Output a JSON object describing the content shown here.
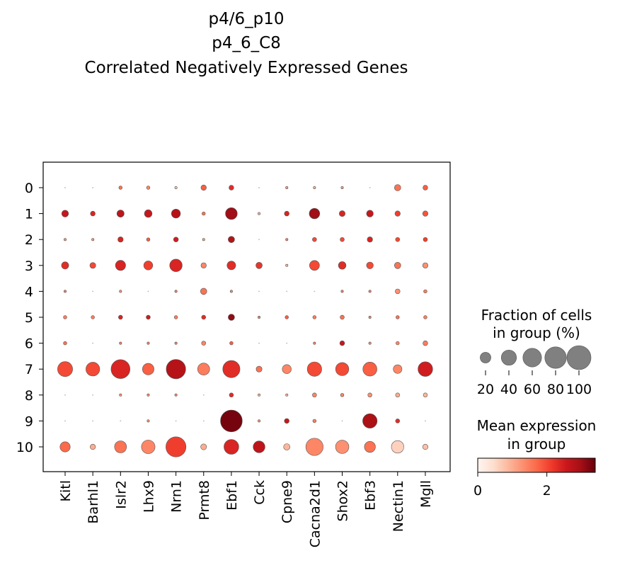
{
  "chart_data": {
    "type": "dotplot",
    "title": [
      "p4/6_p10",
      "p4_6_C8",
      "Correlated Negatively Expressed Genes"
    ],
    "genes": [
      "Kitl",
      "Barhl1",
      "Islr2",
      "Lhx9",
      "Nrn1",
      "Prmt8",
      "Ebf1",
      "Cck",
      "Cpne9",
      "Cacna2d1",
      "Shox2",
      "Ebf3",
      "Nectin1",
      "Mgll"
    ],
    "groups": [
      "0",
      "1",
      "2",
      "3",
      "4",
      "5",
      "6",
      "7",
      "8",
      "9",
      "10"
    ],
    "fraction_pct": [
      [
        0,
        0,
        2,
        2,
        1,
        5,
        4,
        0,
        1,
        1,
        1,
        0,
        7,
        4
      ],
      [
        8,
        4,
        9,
        10,
        14,
        2,
        24,
        1,
        4,
        19,
        6,
        8,
        5,
        5
      ],
      [
        1,
        1,
        5,
        2,
        4,
        1,
        7,
        0,
        1,
        3,
        3,
        5,
        3,
        3
      ],
      [
        9,
        6,
        18,
        14,
        27,
        5,
        13,
        7,
        1,
        17,
        10,
        8,
        7,
        5
      ],
      [
        1,
        0,
        1,
        0,
        1,
        7,
        1,
        0,
        0,
        0,
        1,
        1,
        4,
        2
      ],
      [
        2,
        2,
        3,
        3,
        2,
        3,
        7,
        1,
        2,
        2,
        3,
        1,
        2,
        2
      ],
      [
        2,
        0,
        1,
        1,
        1,
        3,
        2,
        0,
        0,
        1,
        4,
        1,
        2,
        4
      ],
      [
        39,
        33,
        62,
        23,
        65,
        25,
        51,
        6,
        14,
        36,
        30,
        34,
        13,
        37
      ],
      [
        0,
        0,
        1,
        1,
        1,
        0,
        3,
        1,
        1,
        3,
        2,
        3,
        3,
        3
      ],
      [
        0,
        0,
        0,
        1,
        0,
        0,
        82,
        1,
        4,
        2,
        0,
        36,
        3,
        0
      ],
      [
        18,
        5,
        25,
        32,
        70,
        6,
        38,
        24,
        7,
        52,
        31,
        21,
        27,
        5
      ]
    ],
    "mean_expr": [
      [
        0,
        0,
        1.6,
        1.4,
        0.8,
        1.8,
        2.3,
        0,
        1.2,
        1.0,
        1.2,
        0,
        1.6,
        1.8
      ],
      [
        2.6,
        2.4,
        2.7,
        2.6,
        2.8,
        1.6,
        3.0,
        1.0,
        2.4,
        3.0,
        2.4,
        2.6,
        2.1,
        1.9
      ],
      [
        1.3,
        1.3,
        2.4,
        1.8,
        2.5,
        1.2,
        2.8,
        0,
        1.5,
        2.0,
        2.0,
        2.4,
        2.0,
        2.1
      ],
      [
        2.3,
        2.0,
        2.4,
        2.1,
        2.4,
        1.4,
        2.3,
        2.2,
        1.0,
        2.0,
        2.3,
        2.0,
        1.6,
        1.3
      ],
      [
        1.5,
        0,
        1.3,
        0,
        1.5,
        1.6,
        1.4,
        0,
        0,
        0,
        1.5,
        1.5,
        1.3,
        1.5
      ],
      [
        1.5,
        1.5,
        2.4,
        2.5,
        1.5,
        2.3,
        3.1,
        1.5,
        1.8,
        1.5,
        1.6,
        1.5,
        1.6,
        1.5
      ],
      [
        1.6,
        0,
        1.5,
        1.5,
        1.5,
        1.4,
        1.8,
        0,
        0,
        1.5,
        2.6,
        1.4,
        1.4,
        1.5
      ],
      [
        2.0,
        2.0,
        2.4,
        1.8,
        2.8,
        1.5,
        2.3,
        1.6,
        1.4,
        2.0,
        2.0,
        1.8,
        1.4,
        2.5
      ],
      [
        0,
        0,
        1.3,
        1.4,
        1.4,
        0,
        2.3,
        1.0,
        1.0,
        1.4,
        1.4,
        1.3,
        1.0,
        0.9
      ],
      [
        0,
        0,
        0,
        1.3,
        0,
        0,
        3.3,
        1.3,
        2.6,
        1.5,
        0,
        2.9,
        2.3,
        0
      ],
      [
        1.7,
        1.0,
        1.6,
        1.4,
        2.1,
        1.0,
        2.4,
        2.7,
        0.9,
        1.4,
        1.3,
        1.6,
        0.6,
        0.8
      ]
    ],
    "size_legend": {
      "title": [
        "Fraction of cells",
        "in group (%)"
      ],
      "ticks": [
        "20",
        "40",
        "60",
        "80",
        "100"
      ],
      "values": [
        20,
        40,
        60,
        80,
        100
      ]
    },
    "color_legend": {
      "title": [
        "Mean expression",
        "in group"
      ],
      "ticks": [
        "0",
        "2"
      ],
      "tick_values": [
        0,
        2
      ],
      "range": [
        0,
        3.4
      ],
      "colormap": "Reds"
    }
  }
}
